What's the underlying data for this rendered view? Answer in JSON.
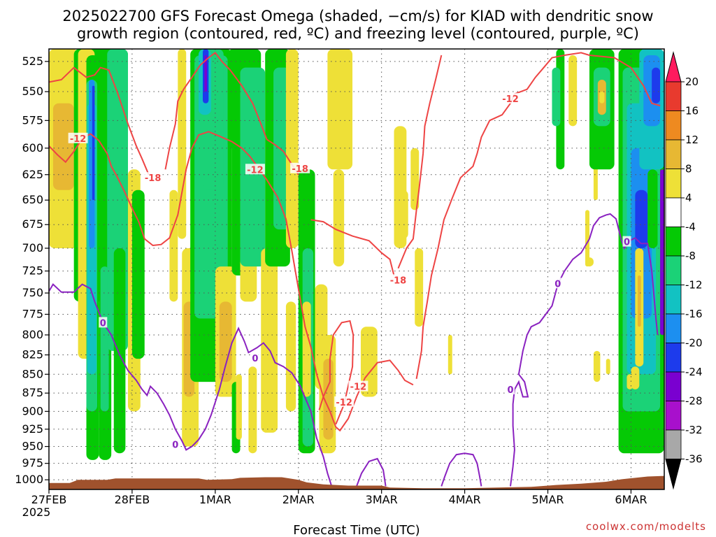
{
  "title": {
    "line1": "2025022700 GFS Forecast Omega (shaded, −cm/s) for KIAD with dendritic snow",
    "line2": "growth region (contoured, red, ºC) and freezing level (contoured, purple, ºC)"
  },
  "credit": "coolwx.com/modelts",
  "colors": {
    "terrain": "#a0522d",
    "dgz_contour": "#ee4444",
    "freezing_contour": "#8a22c0",
    "gridline": "#555555"
  },
  "chart_data": {
    "type": "heatmap",
    "xlabel": "Forecast Time (UTC)",
    "ylabel": "",
    "x_ticks": [
      "27FEB",
      "28FEB",
      "1MAR",
      "2MAR",
      "3MAR",
      "4MAR",
      "5MAR",
      "6MAR"
    ],
    "x_subtick": "2025",
    "x_range_days": [
      0,
      7.4
    ],
    "y_ticks": [
      525,
      550,
      575,
      600,
      625,
      650,
      675,
      700,
      725,
      750,
      775,
      800,
      825,
      850,
      875,
      900,
      925,
      950,
      975,
      1000
    ],
    "y_range_hpa": [
      515,
      1015
    ],
    "y_scale": "log-pressure",
    "grid": true,
    "colorbar": {
      "labels": [
        "20",
        "16",
        "12",
        "8",
        "4",
        "-4",
        "-8",
        "-12",
        "-16",
        "-20",
        "-24",
        "-28",
        "-32",
        "-36"
      ],
      "colors": [
        "#ff1a5e",
        "#e83a2e",
        "#ee8a20",
        "#e7b833",
        "#eee037",
        "#ffffff",
        "#05c905",
        "#1bd277",
        "#12c2c2",
        "#1c8ff0",
        "#1d3bec",
        "#7a00d0",
        "#a810cc",
        "#a8a8a8"
      ],
      "placement": "right"
    },
    "contour_labels_dgz": [
      {
        "text": "-12",
        "x": 0.35,
        "p": 591
      },
      {
        "text": "-18",
        "x": 1.25,
        "p": 628
      },
      {
        "text": "-12",
        "x": 2.48,
        "p": 620
      },
      {
        "text": "-18",
        "x": 3.02,
        "p": 619
      },
      {
        "text": "-18",
        "x": 4.2,
        "p": 735
      },
      {
        "text": "-12",
        "x": 3.72,
        "p": 866
      },
      {
        "text": "-12",
        "x": 3.55,
        "p": 887
      },
      {
        "text": "-12",
        "x": 5.55,
        "p": 556
      }
    ],
    "contour_labels_freezing": [
      {
        "text": "0",
        "x": 0.65,
        "p": 785
      },
      {
        "text": "0",
        "x": 2.48,
        "p": 829
      },
      {
        "text": "0",
        "x": 1.52,
        "p": 947
      },
      {
        "text": "0",
        "x": 5.55,
        "p": 870
      },
      {
        "text": "0",
        "x": 6.12,
        "p": 739
      },
      {
        "text": "0",
        "x": 6.95,
        "p": 693
      }
    ],
    "dgz_contours": [
      [
        [
          0.0,
          598
        ],
        [
          0.1,
          606
        ],
        [
          0.2,
          613
        ],
        [
          0.3,
          603
        ],
        [
          0.4,
          591
        ],
        [
          0.5,
          587
        ],
        [
          0.6,
          593
        ],
        [
          0.7,
          605
        ],
        [
          0.75,
          617
        ],
        [
          0.82,
          627
        ],
        [
          0.9,
          640
        ],
        [
          1.0,
          658
        ],
        [
          1.08,
          672
        ],
        [
          1.15,
          690
        ],
        [
          1.25,
          697
        ],
        [
          1.35,
          696
        ],
        [
          1.45,
          689
        ],
        [
          1.55,
          665
        ],
        [
          1.6,
          642
        ],
        [
          1.65,
          620
        ],
        [
          1.72,
          600
        ],
        [
          1.8,
          588
        ],
        [
          1.92,
          585
        ],
        [
          2.05,
          589
        ],
        [
          2.2,
          594
        ],
        [
          2.32,
          600
        ],
        [
          2.42,
          608
        ],
        [
          2.55,
          622
        ],
        [
          2.62,
          630
        ],
        [
          2.75,
          647
        ],
        [
          2.85,
          669
        ],
        [
          2.92,
          702
        ],
        [
          3.0,
          745
        ],
        [
          3.08,
          790
        ],
        [
          3.15,
          815
        ],
        [
          3.22,
          850
        ],
        [
          3.3,
          880
        ],
        [
          3.38,
          900
        ],
        [
          3.45,
          922
        ],
        [
          3.5,
          927
        ],
        [
          3.6,
          910
        ],
        [
          3.7,
          880
        ],
        [
          3.8,
          855
        ],
        [
          3.95,
          835
        ],
        [
          4.1,
          832
        ],
        [
          4.2,
          845
        ],
        [
          4.28,
          858
        ],
        [
          4.38,
          864
        ]
      ],
      [
        [
          0.0,
          542
        ],
        [
          0.15,
          540
        ],
        [
          0.3,
          530
        ],
        [
          0.45,
          538
        ],
        [
          0.55,
          536
        ],
        [
          0.62,
          530
        ],
        [
          0.72,
          532
        ],
        [
          0.82,
          550
        ],
        [
          0.95,
          578
        ],
        [
          1.05,
          598
        ],
        [
          1.12,
          610
        ],
        [
          1.2,
          625
        ]
      ],
      [
        [
          1.4,
          620
        ],
        [
          1.45,
          600
        ],
        [
          1.52,
          578
        ],
        [
          1.55,
          558
        ],
        [
          1.62,
          548
        ],
        [
          1.72,
          538
        ],
        [
          1.82,
          528
        ],
        [
          1.92,
          522
        ],
        [
          2.0,
          518
        ],
        [
          2.08,
          525
        ],
        [
          2.18,
          532
        ],
        [
          2.32,
          545
        ],
        [
          2.45,
          560
        ],
        [
          2.55,
          578
        ],
        [
          2.62,
          592
        ],
        [
          2.72,
          597
        ],
        [
          2.82,
          603
        ],
        [
          2.92,
          615
        ],
        [
          3.0,
          625
        ]
      ],
      [
        [
          3.25,
          898
        ],
        [
          3.3,
          880
        ],
        [
          3.38,
          860
        ],
        [
          3.38,
          830
        ],
        [
          3.42,
          800
        ],
        [
          3.52,
          785
        ],
        [
          3.62,
          783
        ],
        [
          3.66,
          800
        ],
        [
          3.65,
          840
        ],
        [
          3.55,
          890
        ],
        [
          3.45,
          918
        ]
      ],
      [
        [
          3.15,
          670
        ],
        [
          3.3,
          672
        ],
        [
          3.45,
          680
        ],
        [
          3.65,
          687
        ],
        [
          3.85,
          692
        ],
        [
          4.0,
          705
        ],
        [
          4.1,
          712
        ],
        [
          4.15,
          730
        ]
      ],
      [
        [
          4.42,
          856
        ],
        [
          4.48,
          820
        ],
        [
          4.5,
          790
        ],
        [
          4.55,
          760
        ],
        [
          4.6,
          730
        ],
        [
          4.68,
          700
        ],
        [
          4.75,
          670
        ],
        [
          4.85,
          648
        ],
        [
          4.95,
          628
        ],
        [
          5.1,
          617
        ],
        [
          5.15,
          605
        ],
        [
          5.2,
          590
        ],
        [
          5.3,
          575
        ],
        [
          5.45,
          570
        ],
        [
          5.55,
          560
        ],
        [
          5.6,
          552
        ],
        [
          5.75,
          548
        ],
        [
          5.85,
          538
        ],
        [
          5.95,
          530
        ],
        [
          6.05,
          522
        ],
        [
          6.2,
          520
        ],
        [
          6.4,
          518
        ],
        [
          6.5,
          520
        ],
        [
          6.8,
          522
        ],
        [
          7.0,
          530
        ],
        [
          7.15,
          545
        ],
        [
          7.25,
          560
        ],
        [
          7.35,
          562
        ]
      ],
      [
        [
          4.2,
          722
        ],
        [
          4.3,
          700
        ],
        [
          4.38,
          690
        ],
        [
          4.42,
          660
        ],
        [
          4.45,
          640
        ],
        [
          4.5,
          605
        ],
        [
          4.52,
          580
        ],
        [
          4.58,
          560
        ],
        [
          4.65,
          540
        ],
        [
          4.72,
          520
        ]
      ]
    ],
    "freezing_contours": [
      [
        [
          0.0,
          748
        ],
        [
          0.05,
          740
        ],
        [
          0.15,
          749
        ],
        [
          0.3,
          749
        ],
        [
          0.4,
          740
        ],
        [
          0.5,
          745
        ],
        [
          0.55,
          760
        ],
        [
          0.65,
          785
        ],
        [
          0.75,
          800
        ],
        [
          0.85,
          825
        ],
        [
          0.95,
          845
        ],
        [
          1.05,
          858
        ],
        [
          1.12,
          870
        ],
        [
          1.18,
          878
        ],
        [
          1.22,
          866
        ],
        [
          1.3,
          875
        ],
        [
          1.38,
          890
        ],
        [
          1.45,
          905
        ],
        [
          1.52,
          925
        ],
        [
          1.6,
          942
        ],
        [
          1.65,
          955
        ],
        [
          1.72,
          950
        ],
        [
          1.8,
          940
        ],
        [
          1.88,
          925
        ],
        [
          1.95,
          905
        ],
        [
          2.05,
          870
        ],
        [
          2.12,
          840
        ],
        [
          2.2,
          810
        ],
        [
          2.28,
          792
        ],
        [
          2.35,
          808
        ],
        [
          2.4,
          822
        ],
        [
          2.5,
          816
        ],
        [
          2.58,
          810
        ],
        [
          2.66,
          820
        ],
        [
          2.72,
          835
        ],
        [
          2.82,
          840
        ],
        [
          2.92,
          848
        ],
        [
          3.02,
          865
        ],
        [
          3.15,
          900
        ],
        [
          3.22,
          938
        ],
        [
          3.3,
          965
        ],
        [
          3.35,
          990
        ],
        [
          3.4,
          1010
        ]
      ],
      [
        [
          3.7,
          1010
        ],
        [
          3.76,
          990
        ],
        [
          3.85,
          972
        ],
        [
          3.95,
          968
        ],
        [
          4.02,
          985
        ],
        [
          4.05,
          1010
        ]
      ],
      [
        [
          4.72,
          1010
        ],
        [
          4.76,
          995
        ],
        [
          4.82,
          975
        ],
        [
          4.9,
          962
        ],
        [
          5.0,
          960
        ],
        [
          5.1,
          962
        ],
        [
          5.15,
          975
        ],
        [
          5.18,
          995
        ],
        [
          5.2,
          1010
        ]
      ],
      [
        [
          5.55,
          1010
        ],
        [
          5.58,
          980
        ],
        [
          5.6,
          955
        ],
        [
          5.58,
          920
        ],
        [
          5.58,
          890
        ],
        [
          5.6,
          870
        ],
        [
          5.65,
          860
        ],
        [
          5.7,
          880
        ],
        [
          5.76,
          880
        ],
        [
          5.72,
          860
        ],
        [
          5.65,
          850
        ],
        [
          5.7,
          820
        ],
        [
          5.75,
          800
        ],
        [
          5.8,
          790
        ],
        [
          5.9,
          785
        ],
        [
          6.05,
          765
        ],
        [
          6.12,
          740
        ],
        [
          6.2,
          725
        ],
        [
          6.3,
          712
        ],
        [
          6.4,
          705
        ],
        [
          6.5,
          690
        ],
        [
          6.55,
          676
        ],
        [
          6.62,
          668
        ],
        [
          6.7,
          665
        ],
        [
          6.75,
          664
        ],
        [
          6.82,
          669
        ],
        [
          6.88,
          690
        ],
        [
          6.92,
          700
        ],
        [
          6.98,
          692
        ],
        [
          7.05,
          689
        ],
        [
          7.12,
          695
        ],
        [
          7.2,
          695
        ],
        [
          7.25,
          725
        ],
        [
          7.3,
          780
        ],
        [
          7.32,
          800
        ]
      ]
    ]
  }
}
